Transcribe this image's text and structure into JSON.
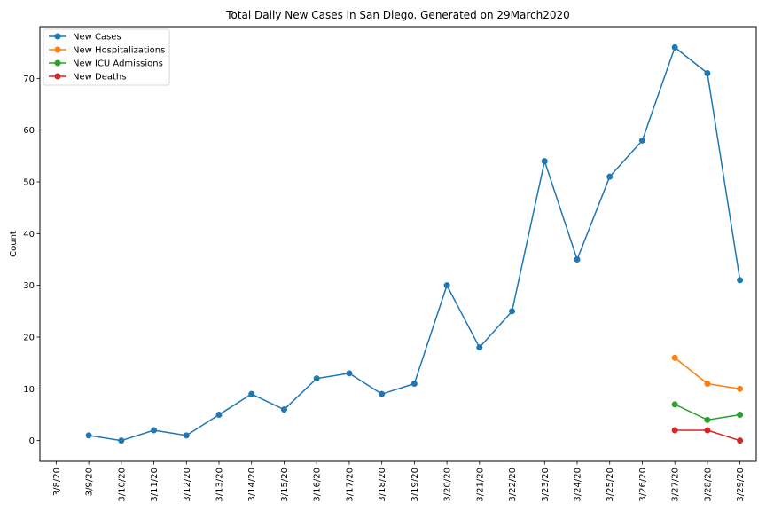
{
  "chart_data": {
    "type": "line",
    "title": "Total Daily New Cases in San Diego. Generated on 29March2020",
    "xlabel": "",
    "ylabel": "Count",
    "categories": [
      "3/8/20",
      "3/9/20",
      "3/10/20",
      "3/11/20",
      "3/12/20",
      "3/13/20",
      "3/14/20",
      "3/15/20",
      "3/16/20",
      "3/17/20",
      "3/18/20",
      "3/19/20",
      "3/20/20",
      "3/21/20",
      "3/22/20",
      "3/23/20",
      "3/24/20",
      "3/25/20",
      "3/26/20",
      "3/27/20",
      "3/28/20",
      "3/29/20"
    ],
    "ylim": [
      -4,
      80
    ],
    "yticks": [
      0,
      10,
      20,
      30,
      40,
      50,
      60,
      70
    ],
    "grid": false,
    "legend_position": "top-left",
    "series": [
      {
        "name": "New Cases",
        "color": "#1f77b4",
        "x": [
          "3/9/20",
          "3/10/20",
          "3/11/20",
          "3/12/20",
          "3/13/20",
          "3/14/20",
          "3/15/20",
          "3/16/20",
          "3/17/20",
          "3/18/20",
          "3/19/20",
          "3/20/20",
          "3/21/20",
          "3/22/20",
          "3/23/20",
          "3/24/20",
          "3/25/20",
          "3/26/20",
          "3/27/20",
          "3/28/20",
          "3/29/20"
        ],
        "values": [
          1,
          0,
          2,
          1,
          5,
          9,
          6,
          12,
          13,
          9,
          11,
          30,
          18,
          25,
          54,
          35,
          51,
          58,
          76,
          71,
          31
        ]
      },
      {
        "name": "New Hospitalizations",
        "color": "#ff7f0e",
        "x": [
          "3/27/20",
          "3/28/20",
          "3/29/20"
        ],
        "values": [
          16,
          11,
          10
        ]
      },
      {
        "name": "New ICU Admissions",
        "color": "#2ca02c",
        "x": [
          "3/27/20",
          "3/28/20",
          "3/29/20"
        ],
        "values": [
          7,
          4,
          5
        ]
      },
      {
        "name": "New Deaths",
        "color": "#d62728",
        "x": [
          "3/27/20",
          "3/28/20",
          "3/29/20"
        ],
        "values": [
          2,
          2,
          0
        ]
      }
    ]
  }
}
